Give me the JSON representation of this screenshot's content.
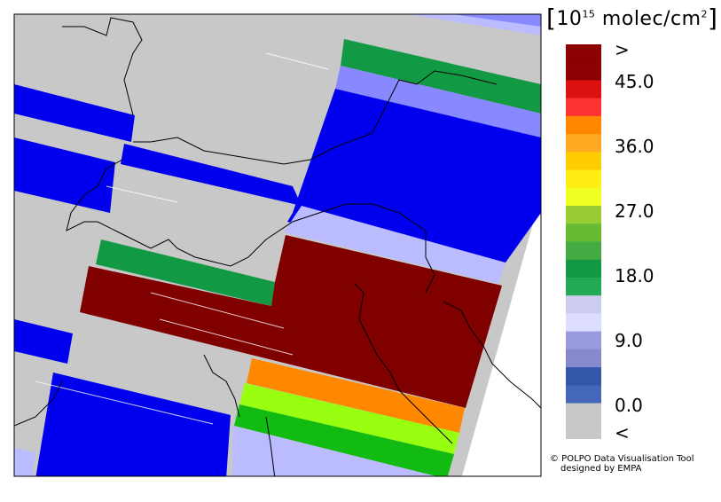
{
  "legend": {
    "unit_prefix": "10",
    "unit_exponent": "15",
    "unit_suffix": " molec/cm",
    "unit_suffix_exp": "2",
    "labels": [
      ">",
      "45.0",
      "36.0",
      "27.0",
      "18.0",
      "9.0",
      "0.0",
      "<"
    ],
    "swatches": [
      "#8b0000",
      "#8b0000",
      "#dd1111",
      "#ff3333",
      "#ff8800",
      "#ffaa22",
      "#ffcc00",
      "#ffee11",
      "#eeff22",
      "#99cc33",
      "#66bb33",
      "#44aa44",
      "#119944",
      "#22aa55",
      "#ccccee",
      "#ddddff",
      "#9999dd",
      "#8888cc",
      "#3355aa",
      "#4466bb",
      "#c8c8c8",
      "#c8c8c8"
    ]
  },
  "credit": {
    "line1": "© POLPO Data Visualisation Tool",
    "line2": "designed by EMPA"
  },
  "colors": {
    "no_data": "#c8c8c8",
    "blue": "#0000ee",
    "light_blue": "#bbbbff",
    "mid_blue": "#8888ff",
    "green": "#119944",
    "dark_red": "#800000",
    "orange": "#ff8800",
    "lime": "#99ff11",
    "bright_green": "#11bb11"
  }
}
